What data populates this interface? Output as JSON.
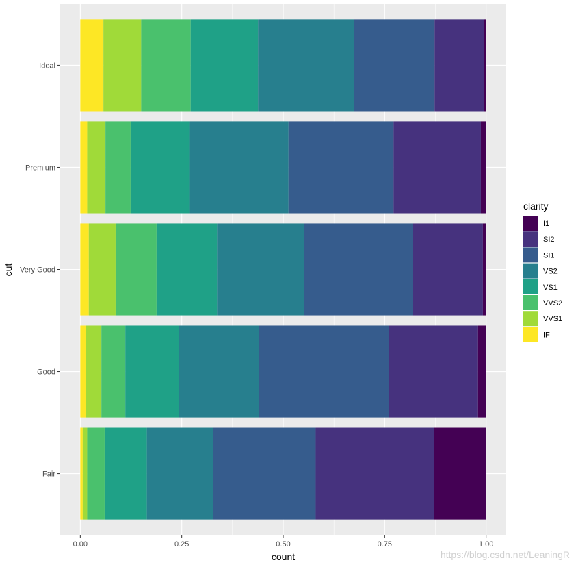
{
  "chart_data": {
    "type": "bar",
    "orientation": "horizontal",
    "stacked": true,
    "normalized": true,
    "xlabel": "count",
    "ylabel": "cut",
    "xlim": [
      0,
      1
    ],
    "x_ticks": [
      "0.00",
      "0.25",
      "0.50",
      "0.75",
      "1.00"
    ],
    "categories": [
      "Ideal",
      "Premium",
      "Very Good",
      "Good",
      "Fair"
    ],
    "legend": {
      "title": "clarity",
      "position": "right"
    },
    "grid": true,
    "series": [
      {
        "name": "IF",
        "color": "#FDE725",
        "values": [
          0.057,
          0.017,
          0.021,
          0.014,
          0.006
        ]
      },
      {
        "name": "VVS1",
        "color": "#A0DA39",
        "values": [
          0.093,
          0.045,
          0.066,
          0.038,
          0.011
        ]
      },
      {
        "name": "VVS2",
        "color": "#4AC16D",
        "values": [
          0.122,
          0.062,
          0.101,
          0.059,
          0.043
        ]
      },
      {
        "name": "VS1",
        "color": "#1FA187",
        "values": [
          0.166,
          0.146,
          0.149,
          0.132,
          0.104
        ]
      },
      {
        "name": "VS2",
        "color": "#277F8E",
        "values": [
          0.236,
          0.243,
          0.214,
          0.198,
          0.163
        ]
      },
      {
        "name": "SI1",
        "color": "#365C8D",
        "values": [
          0.199,
          0.259,
          0.269,
          0.319,
          0.253
        ]
      },
      {
        "name": "SI2",
        "color": "#46327E",
        "values": [
          0.122,
          0.215,
          0.172,
          0.22,
          0.291
        ]
      },
      {
        "name": "I1",
        "color": "#440154",
        "values": [
          0.005,
          0.013,
          0.008,
          0.02,
          0.129
        ]
      }
    ],
    "legend_order": [
      "I1",
      "SI2",
      "SI1",
      "VS2",
      "VS1",
      "VVS2",
      "VVS1",
      "IF"
    ]
  },
  "watermark": "https://blog.csdn.net/LeaningR"
}
